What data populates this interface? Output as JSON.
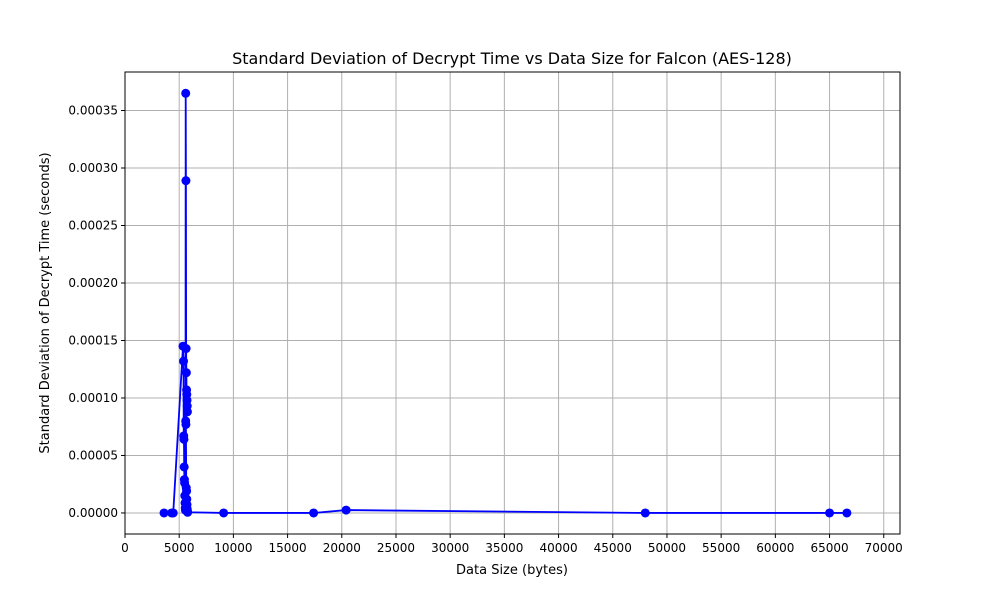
{
  "chart_data": {
    "type": "line",
    "title": "Standard Deviation of Decrypt Time vs Data Size for Falcon (AES-128)",
    "xlabel": "Data Size (bytes)",
    "ylabel": "Standard Deviation of Decrypt Time (seconds)",
    "xlim": [
      0,
      71500
    ],
    "ylim": [
      -1.83e-05,
      0.0003835
    ],
    "xticks": [
      0,
      5000,
      10000,
      15000,
      20000,
      25000,
      30000,
      35000,
      40000,
      45000,
      50000,
      55000,
      60000,
      65000,
      70000
    ],
    "xtick_labels": [
      "0",
      "5000",
      "10000",
      "15000",
      "20000",
      "25000",
      "30000",
      "35000",
      "40000",
      "45000",
      "50000",
      "55000",
      "60000",
      "65000",
      "70000"
    ],
    "yticks": [
      0,
      5e-05,
      0.0001,
      0.00015,
      0.0002,
      0.00025,
      0.0003,
      0.00035
    ],
    "ytick_labels": [
      "0.00000",
      "0.00005",
      "0.00010",
      "0.00015",
      "0.00020",
      "0.00025",
      "0.00030",
      "0.00035"
    ],
    "grid": true,
    "series_color": "#0000ff",
    "x": [
      3600,
      4300,
      4450,
      5350,
      5400,
      5420,
      5440,
      5460,
      5480,
      5500,
      5520,
      5540,
      5560,
      5580,
      5600,
      5620,
      5640,
      5660,
      5680,
      5700,
      5720,
      5740,
      5760,
      5600,
      5620,
      5650,
      5680,
      5700,
      5720,
      5740,
      5760,
      5780,
      9100,
      17400,
      20400,
      48000,
      65000,
      66600
    ],
    "y": [
      0,
      0,
      0,
      0.000145,
      0.000132,
      6.7e-05,
      6.4e-05,
      4e-05,
      2.9e-05,
      2.6e-05,
      1.5e-05,
      8.75e-06,
      4.5e-06,
      2.3e-06,
      0.000365,
      0.000289,
      0.000143,
      0.000122,
      0.000107,
      0.000103,
      9.8e-05,
      9.3e-05,
      8.8e-05,
      8e-05,
      7.7e-05,
      2.2e-05,
      1.9e-05,
      1.2e-05,
      7.2e-06,
      3.5e-06,
      1.6e-06,
      6e-07,
      0,
      0,
      2.5e-06,
      0,
      0,
      0
    ]
  }
}
